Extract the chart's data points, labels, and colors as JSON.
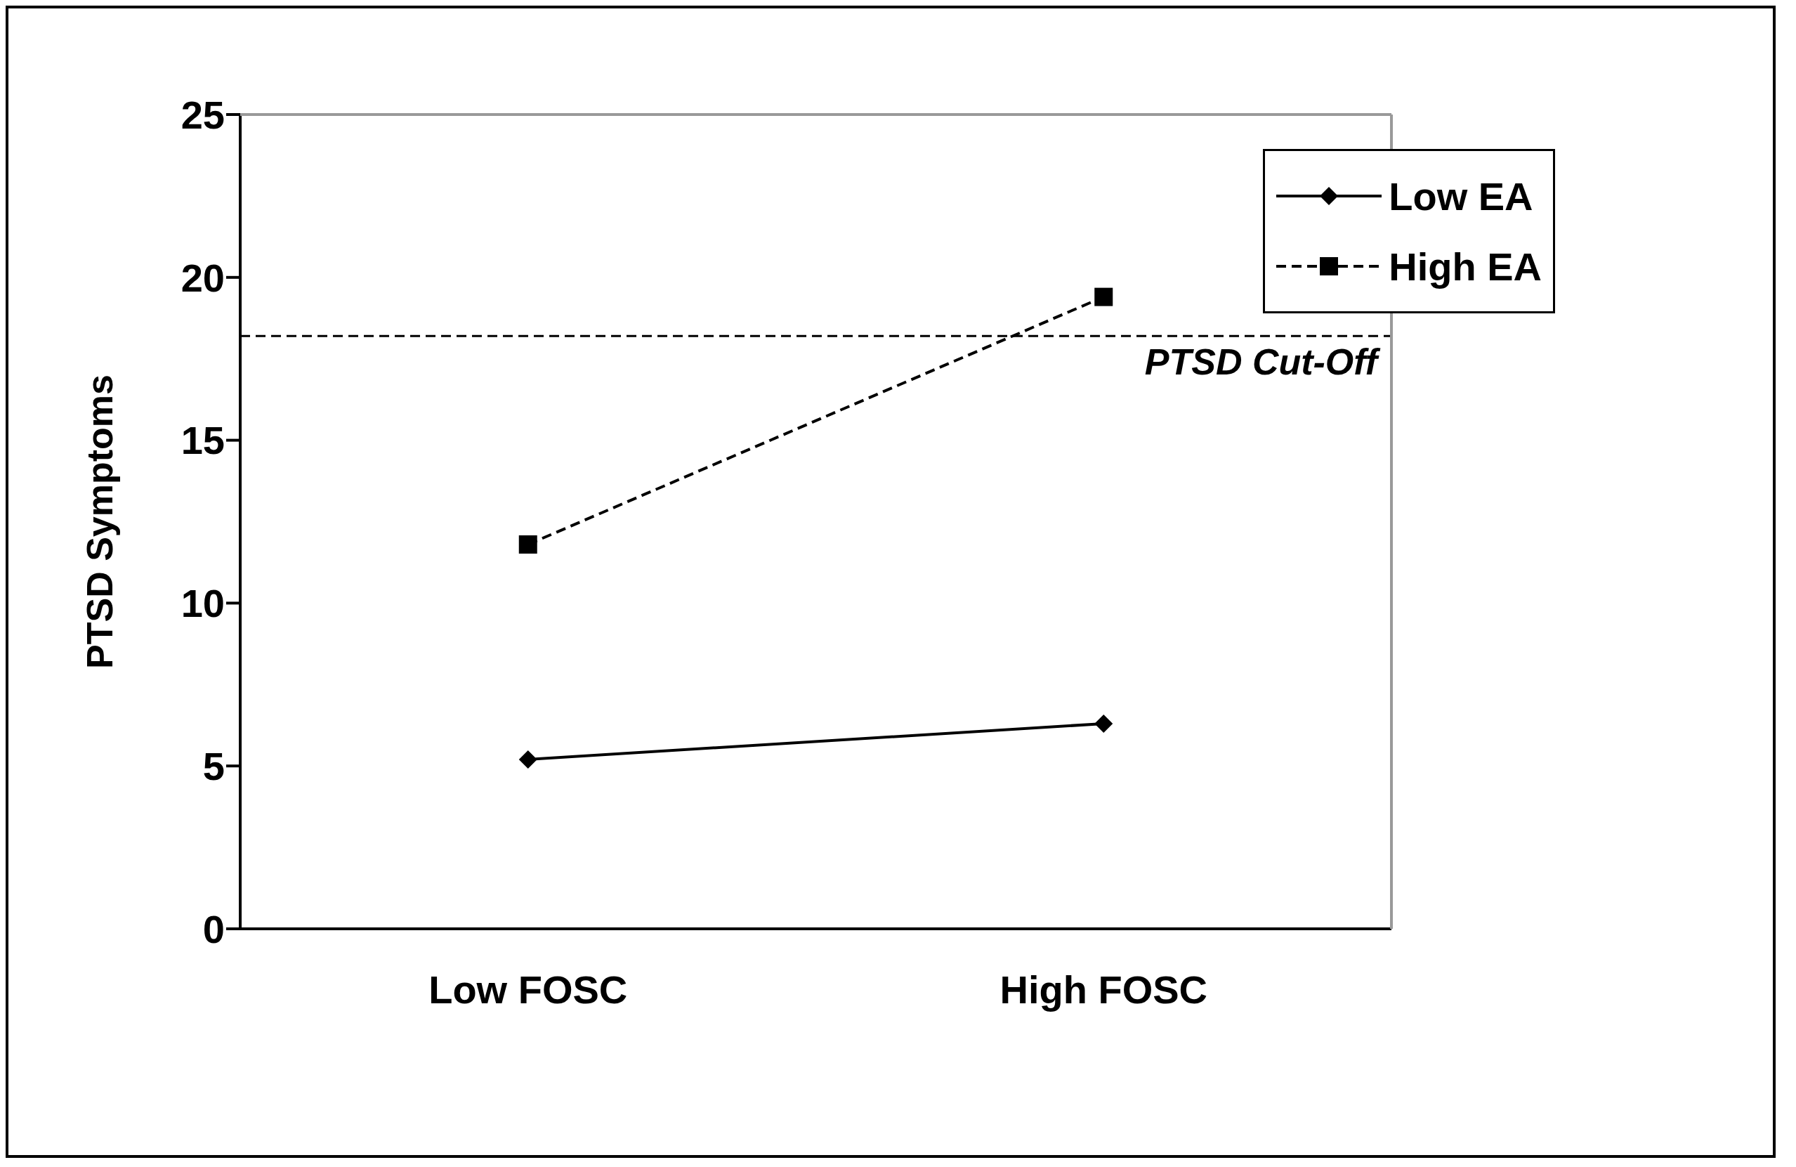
{
  "chart_data": {
    "type": "line",
    "ylabel": "PTSD Symptoms",
    "categories": [
      "Low FOSC",
      "High FOSC"
    ],
    "series": [
      {
        "name": "Low EA",
        "color": "#000000",
        "values": [
          5.2,
          6.3
        ],
        "marker": "diamond",
        "line_style": "solid"
      },
      {
        "name": "High EA",
        "color": "#000000",
        "values": [
          11.8,
          19.4
        ],
        "marker": "square",
        "line_style": "dashed"
      }
    ],
    "ylim": [
      0,
      25
    ],
    "yticks": [
      0,
      5,
      10,
      15,
      20,
      25
    ],
    "legend": "top right",
    "ref_lines": [
      {
        "axis": "y",
        "value": 18.2,
        "label": "PTSD Cut-Off",
        "line_style": "dashed",
        "color": "#000000"
      }
    ]
  }
}
